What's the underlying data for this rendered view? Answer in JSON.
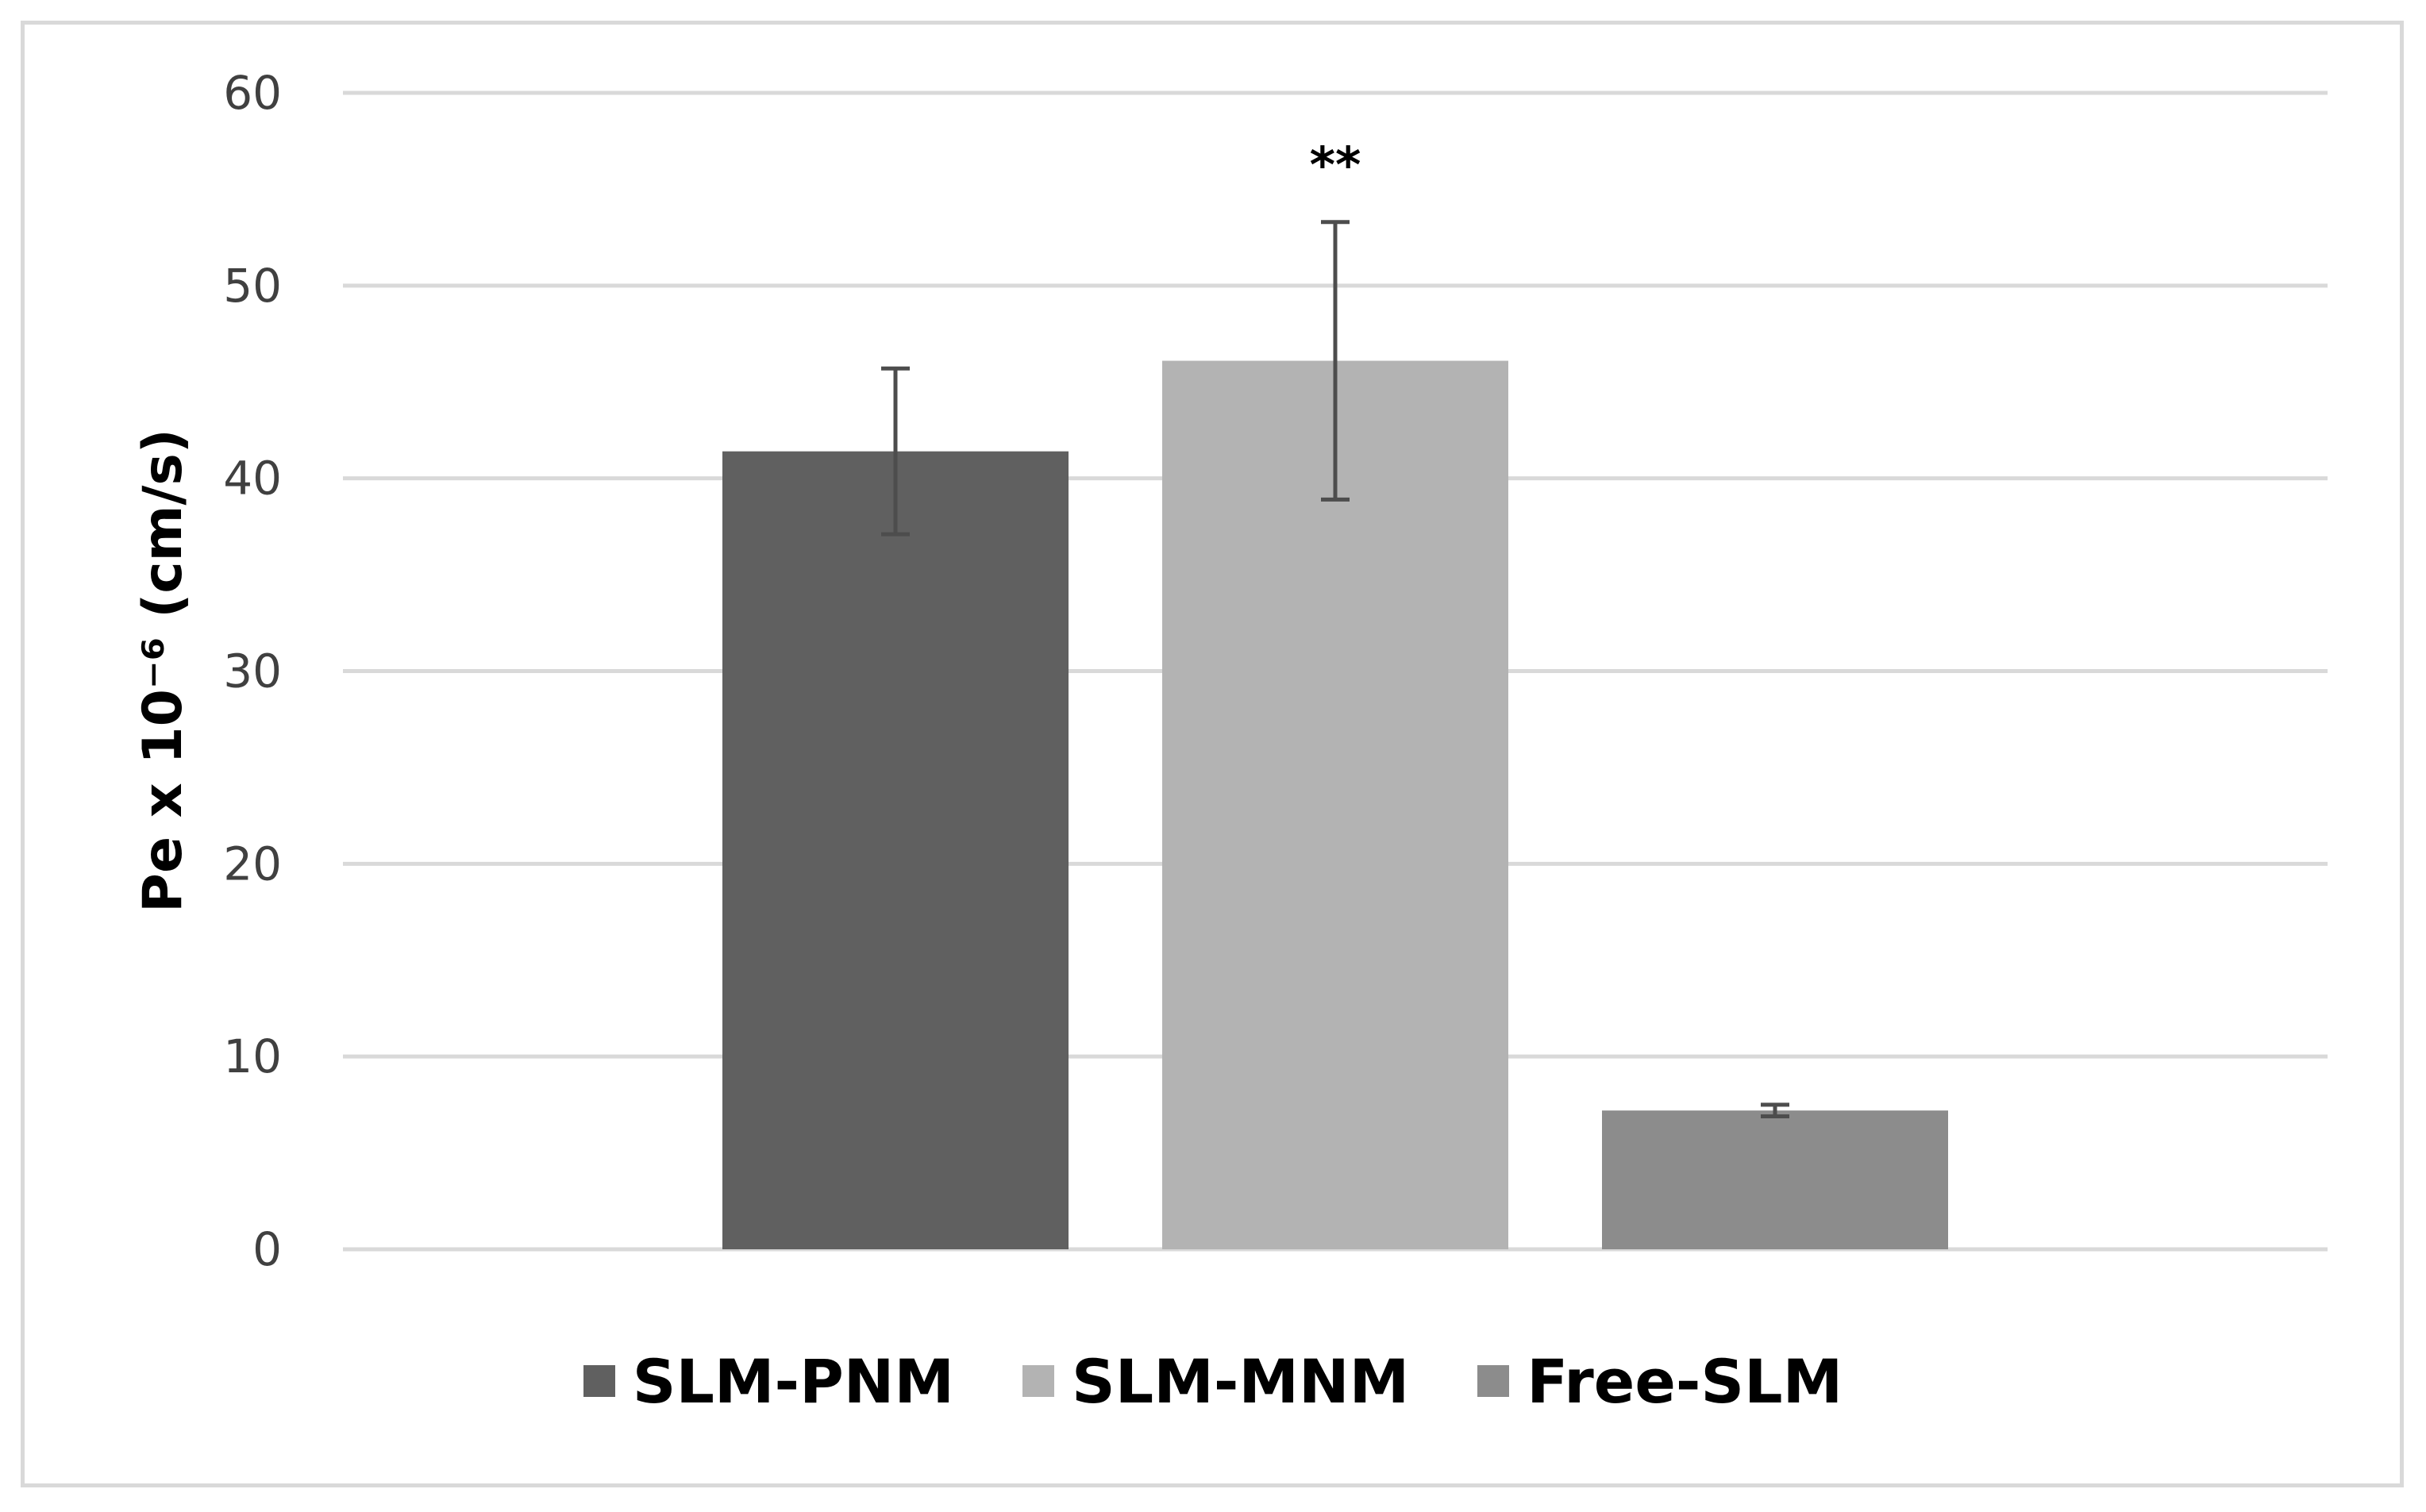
{
  "chart_data": {
    "type": "bar",
    "categories": [
      "SLM-PNM",
      "SLM-MNM",
      "Free-SLM"
    ],
    "values": [
      41.4,
      46.1,
      7.2
    ],
    "errors": [
      4.3,
      7.2,
      0.3
    ],
    "colors": [
      "#606060",
      "#b3b3b3",
      "#8c8c8c"
    ],
    "ylabel": "Pe x 10⁻⁶ (cm/s)",
    "xlabel": "",
    "ylim": [
      0,
      60
    ],
    "yticks": [
      0,
      10,
      20,
      30,
      40,
      50,
      60
    ],
    "grid": true,
    "legend_position": "bottom",
    "annotations": [
      {
        "category": "SLM-MNM",
        "text": "**"
      }
    ]
  }
}
